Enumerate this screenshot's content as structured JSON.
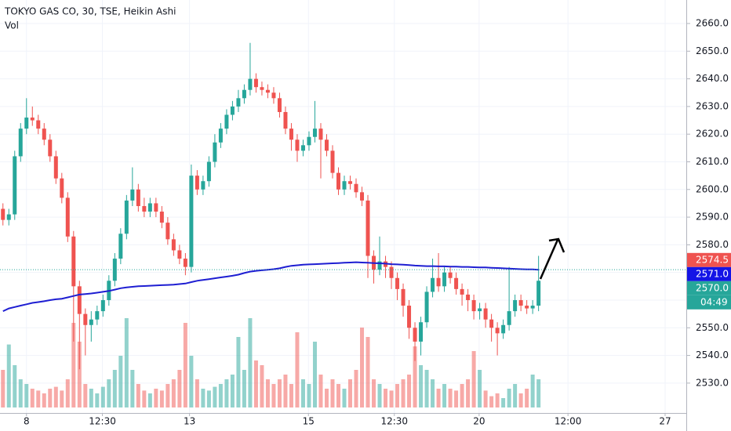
{
  "chart_data": {
    "type": "candlestick",
    "title": "TOKYO GAS CO, 30, TSE, Heikin Ashi",
    "up_color": "#26a69a",
    "down_color": "#ef5350",
    "xlim": [
      -0.5,
      116.1
    ],
    "ylim": [
      2519.2,
      2668.5
    ],
    "xticks": [
      {
        "value": 4,
        "label": "8"
      },
      {
        "value": 16.9,
        "label": "12:30"
      },
      {
        "value": 31.7,
        "label": "13"
      },
      {
        "value": 51.9,
        "label": "15"
      },
      {
        "value": 66.5,
        "label": "12:30"
      },
      {
        "value": 80.9,
        "label": "20"
      },
      {
        "value": 96,
        "label": "12:00"
      },
      {
        "value": 112.5,
        "label": "27"
      }
    ],
    "yticks": [
      {
        "value": 2530,
        "label": "2530.0"
      },
      {
        "value": 2540,
        "label": "2540.0"
      },
      {
        "value": 2550,
        "label": "2550.0"
      },
      {
        "value": 2560,
        "label": "2560.0"
      },
      {
        "value": 2570,
        "label": "2570.0"
      },
      {
        "value": 2580,
        "label": "2580.0"
      },
      {
        "value": 2590,
        "label": "2590.0"
      },
      {
        "value": 2600,
        "label": "2600.0"
      },
      {
        "value": 2610,
        "label": "2610.0"
      },
      {
        "value": 2620,
        "label": "2620.0"
      },
      {
        "value": 2630,
        "label": "2630.0"
      },
      {
        "value": 2640,
        "label": "2640.0"
      },
      {
        "value": 2650,
        "label": "2650.0"
      },
      {
        "value": 2660,
        "label": "2660.0"
      }
    ],
    "grid": true,
    "candles": {
      "open": [
        2593,
        2589,
        2591,
        2612,
        2622,
        2626,
        2625,
        2622,
        2618,
        2612,
        2604,
        2597,
        2583,
        2565,
        2555,
        2551,
        2553,
        2556,
        2560,
        2567,
        2575,
        2584,
        2596,
        2600,
        2594,
        2592,
        2595,
        2592,
        2588,
        2582,
        2578,
        2575,
        2572,
        2605,
        2600,
        2603,
        2610,
        2617,
        2622,
        2627,
        2630,
        2633,
        2636,
        2640,
        2637,
        2636,
        2635,
        2633,
        2628,
        2622,
        2618,
        2614,
        2616,
        2619,
        2622,
        2618,
        2614,
        2606,
        2600,
        2603,
        2602,
        2599,
        2596,
        2576,
        2571,
        2574,
        2572,
        2568,
        2564,
        2558,
        2550,
        2545,
        2552,
        2563,
        2568,
        2565,
        2570,
        2568,
        2564,
        2562,
        2560,
        2556,
        2557,
        2553,
        2550,
        2548,
        2551,
        2556,
        2560,
        2558,
        2557,
        2558
      ],
      "high": [
        2595,
        2593,
        2614,
        2624,
        2633,
        2630,
        2627,
        2624,
        2620,
        2614,
        2606,
        2599,
        2585,
        2567,
        2557,
        2556,
        2558,
        2562,
        2569,
        2577,
        2586,
        2598,
        2608,
        2602,
        2597,
        2597,
        2597,
        2594,
        2590,
        2584,
        2580,
        2577,
        2609,
        2607,
        2605,
        2612,
        2620,
        2624,
        2629,
        2632,
        2636,
        2638,
        2653,
        2642,
        2639,
        2638,
        2637,
        2635,
        2630,
        2624,
        2620,
        2618,
        2621,
        2632,
        2624,
        2620,
        2616,
        2608,
        2605,
        2605,
        2604,
        2601,
        2598,
        2578,
        2583,
        2576,
        2574,
        2570,
        2566,
        2560,
        2552,
        2554,
        2565,
        2575,
        2577,
        2572,
        2572,
        2570,
        2566,
        2564,
        2562,
        2559,
        2559,
        2555,
        2552,
        2553,
        2572,
        2562,
        2562,
        2560,
        2560,
        2576
      ],
      "low": [
        2587,
        2587,
        2589,
        2610,
        2620,
        2623,
        2620,
        2616,
        2610,
        2602,
        2595,
        2581,
        2545,
        2535,
        2540,
        2545,
        2551,
        2554,
        2558,
        2565,
        2573,
        2582,
        2594,
        2592,
        2590,
        2590,
        2590,
        2586,
        2580,
        2576,
        2573,
        2569,
        2570,
        2598,
        2598,
        2601,
        2608,
        2615,
        2620,
        2625,
        2628,
        2631,
        2634,
        2635,
        2634,
        2633,
        2631,
        2626,
        2620,
        2614,
        2610,
        2612,
        2614,
        2617,
        2604,
        2612,
        2604,
        2598,
        2598,
        2600,
        2597,
        2594,
        2568,
        2566,
        2569,
        2568,
        2564,
        2560,
        2554,
        2546,
        2538,
        2540,
        2550,
        2561,
        2563,
        2563,
        2566,
        2562,
        2558,
        2556,
        2553,
        2553,
        2550,
        2545,
        2540,
        2546,
        2549,
        2554,
        2556,
        2555,
        2555,
        2556
      ],
      "close": [
        2589,
        2591,
        2612,
        2622,
        2626,
        2625,
        2622,
        2618,
        2612,
        2604,
        2597,
        2583,
        2565,
        2555,
        2551,
        2553,
        2556,
        2560,
        2567,
        2575,
        2584,
        2596,
        2600,
        2594,
        2592,
        2595,
        2592,
        2588,
        2582,
        2578,
        2575,
        2572,
        2605,
        2600,
        2603,
        2610,
        2617,
        2622,
        2627,
        2630,
        2633,
        2636,
        2640,
        2637,
        2636,
        2635,
        2633,
        2628,
        2622,
        2618,
        2614,
        2616,
        2619,
        2622,
        2618,
        2614,
        2606,
        2600,
        2603,
        2602,
        2599,
        2596,
        2576,
        2571,
        2574,
        2572,
        2568,
        2564,
        2558,
        2550,
        2545,
        2552,
        2563,
        2568,
        2565,
        2570,
        2568,
        2564,
        2562,
        2560,
        2556,
        2557,
        2553,
        2550,
        2548,
        2551,
        2556,
        2560,
        2558,
        2557,
        2558,
        2567
      ]
    },
    "line": {
      "color": "#1e1ed2",
      "values": [
        2556,
        2557,
        2557.5,
        2558,
        2558.5,
        2559,
        2559.3,
        2559.6,
        2560,
        2560.3,
        2560.5,
        2561,
        2561.5,
        2562,
        2562.2,
        2562.4,
        2562.7,
        2563,
        2563.3,
        2563.8,
        2564.3,
        2564.6,
        2564.8,
        2565,
        2565.1,
        2565.2,
        2565.3,
        2565.4,
        2565.5,
        2565.6,
        2565.8,
        2566,
        2566.5,
        2567,
        2567.3,
        2567.6,
        2567.9,
        2568.2,
        2568.5,
        2568.8,
        2569.2,
        2569.8,
        2570.3,
        2570.6,
        2570.8,
        2571,
        2571.2,
        2571.5,
        2572,
        2572.4,
        2572.6,
        2572.8,
        2572.9,
        2573,
        2573.1,
        2573.2,
        2573.3,
        2573.4,
        2573.5,
        2573.6,
        2573.7,
        2573.6,
        2573.5,
        2573.4,
        2573.3,
        2573.2,
        2573,
        2572.9,
        2572.8,
        2572.7,
        2572.5,
        2572.4,
        2572.3,
        2572.3,
        2572.2,
        2572.2,
        2572.1,
        2572.1,
        2572,
        2572,
        2571.9,
        2571.8,
        2571.8,
        2571.7,
        2571.6,
        2571.5,
        2571.4,
        2571.3,
        2571.2,
        2571.1,
        2571.1,
        2571
      ]
    },
    "volume": {
      "name": "Vol",
      "ylim": [
        0,
        100
      ],
      "values": [
        40,
        67,
        45,
        30,
        25,
        20,
        18,
        15,
        20,
        22,
        18,
        30,
        90,
        70,
        25,
        20,
        15,
        22,
        30,
        40,
        55,
        95,
        40,
        25,
        18,
        15,
        20,
        18,
        25,
        30,
        40,
        90,
        55,
        30,
        20,
        18,
        22,
        25,
        30,
        35,
        75,
        40,
        95,
        50,
        45,
        30,
        25,
        30,
        35,
        25,
        80,
        30,
        25,
        70,
        35,
        20,
        30,
        25,
        20,
        30,
        40,
        85,
        75,
        30,
        25,
        20,
        18,
        25,
        30,
        35,
        65,
        45,
        40,
        30,
        20,
        25,
        20,
        18,
        25,
        30,
        60,
        40,
        18,
        12,
        15,
        10,
        20,
        25,
        15,
        20,
        35,
        30
      ]
    },
    "price_labels": [
      {
        "value": 2574.5,
        "label": "2574.5",
        "color": "#ef5350"
      },
      {
        "value": 2571.0,
        "label": "2571.0",
        "color": "#1414e6"
      },
      {
        "value": 2570.0,
        "label": "2570.0",
        "color": "#26a69a"
      }
    ],
    "countdown": "04:49"
  }
}
